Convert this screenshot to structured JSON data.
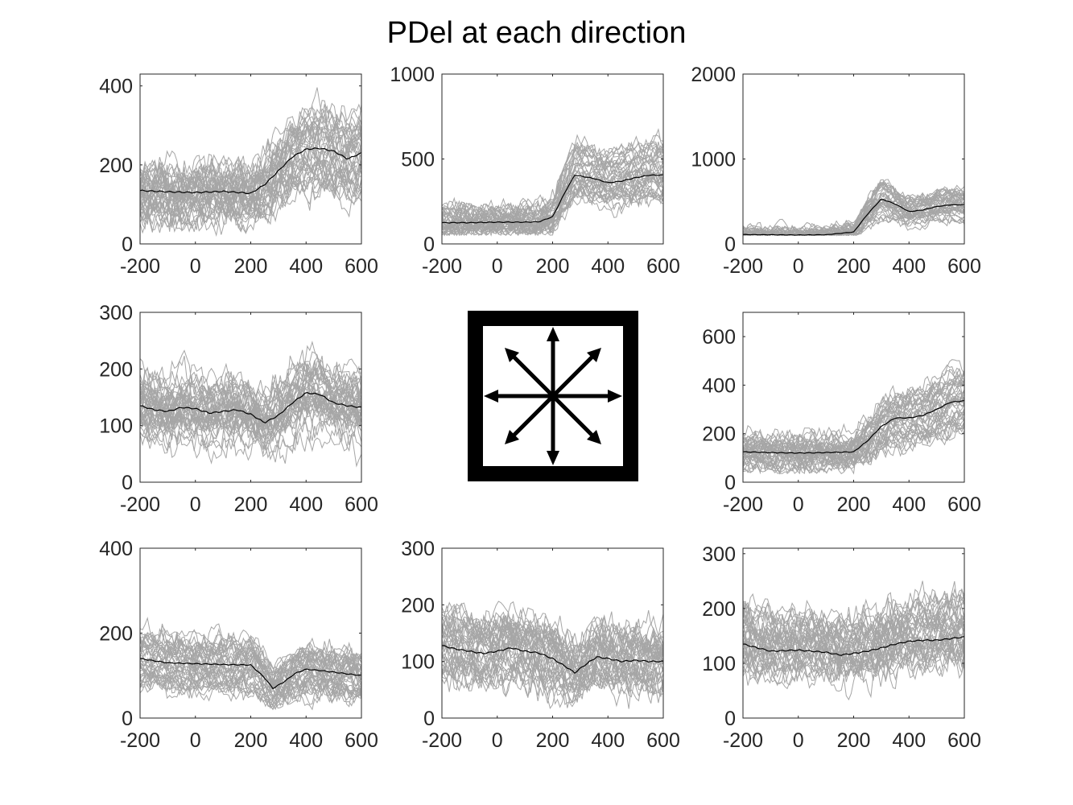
{
  "title": "PDel at each direction",
  "colors": {
    "trials": "#a6a6a6",
    "mean": "#000000",
    "axes": "#262626"
  },
  "chart_data": [
    {
      "type": "line",
      "panel": "top-left",
      "xlim": [
        -200,
        600
      ],
      "ylim": [
        0,
        430
      ],
      "xticks": [
        -200,
        0,
        200,
        400,
        600
      ],
      "yticks": [
        0,
        200,
        400
      ],
      "trial_spread": 55,
      "series": [
        {
          "x": [
            -200,
            -100,
            0,
            100,
            200,
            250,
            300,
            350,
            400,
            450,
            500,
            550,
            600
          ],
          "values": [
            135,
            132,
            130,
            133,
            128,
            150,
            185,
            220,
            240,
            242,
            235,
            215,
            230
          ]
        }
      ]
    },
    {
      "type": "line",
      "panel": "top-middle",
      "xlim": [
        -200,
        600
      ],
      "ylim": [
        0,
        1000
      ],
      "xticks": [
        -200,
        0,
        200,
        400,
        600
      ],
      "yticks": [
        0,
        500,
        1000
      ],
      "trial_spread": 75,
      "series": [
        {
          "x": [
            -200,
            -100,
            0,
            100,
            150,
            200,
            250,
            280,
            300,
            350,
            400,
            450,
            500,
            550,
            600
          ],
          "values": [
            125,
            125,
            128,
            128,
            130,
            160,
            320,
            405,
            400,
            385,
            360,
            370,
            390,
            405,
            405
          ]
        }
      ]
    },
    {
      "type": "line",
      "panel": "top-right",
      "xlim": [
        -200,
        600
      ],
      "ylim": [
        0,
        2000
      ],
      "xticks": [
        -200,
        0,
        200,
        400,
        600
      ],
      "yticks": [
        0,
        1000,
        2000
      ],
      "trial_spread": 90,
      "series": [
        {
          "x": [
            -200,
            -100,
            0,
            100,
            200,
            250,
            300,
            350,
            400,
            450,
            500,
            550,
            600
          ],
          "values": [
            110,
            108,
            105,
            108,
            140,
            350,
            530,
            470,
            380,
            400,
            440,
            460,
            460
          ]
        }
      ]
    },
    {
      "type": "line",
      "panel": "middle-left",
      "xlim": [
        -200,
        600
      ],
      "ylim": [
        0,
        300
      ],
      "xticks": [
        -200,
        0,
        200,
        400,
        600
      ],
      "yticks": [
        0,
        100,
        200,
        300
      ],
      "trial_spread": 38,
      "series": [
        {
          "x": [
            -200,
            -150,
            -100,
            -50,
            0,
            50,
            100,
            150,
            200,
            250,
            300,
            350,
            400,
            450,
            500,
            550,
            600
          ],
          "values": [
            135,
            128,
            125,
            132,
            130,
            122,
            125,
            128,
            120,
            105,
            118,
            140,
            158,
            155,
            140,
            135,
            132
          ]
        }
      ]
    },
    {
      "type": "line",
      "panel": "middle-right",
      "xlim": [
        -200,
        600
      ],
      "ylim": [
        0,
        700
      ],
      "xticks": [
        -200,
        0,
        200,
        400,
        600
      ],
      "yticks": [
        0,
        200,
        400,
        600
      ],
      "trial_spread": 55,
      "series": [
        {
          "x": [
            -200,
            -100,
            0,
            100,
            200,
            250,
            300,
            350,
            400,
            450,
            500,
            550,
            600
          ],
          "values": [
            125,
            122,
            120,
            122,
            125,
            170,
            230,
            265,
            265,
            275,
            300,
            330,
            335
          ]
        }
      ]
    },
    {
      "type": "line",
      "panel": "bottom-left",
      "xlim": [
        -200,
        600
      ],
      "ylim": [
        0,
        400
      ],
      "xticks": [
        -200,
        0,
        200,
        400,
        600
      ],
      "yticks": [
        0,
        200,
        400
      ],
      "trial_spread": 35,
      "series": [
        {
          "x": [
            -200,
            -100,
            0,
            100,
            200,
            250,
            280,
            320,
            360,
            400,
            450,
            500,
            550,
            600
          ],
          "values": [
            140,
            130,
            128,
            126,
            125,
            95,
            70,
            85,
            105,
            115,
            112,
            108,
            104,
            100
          ]
        }
      ]
    },
    {
      "type": "line",
      "panel": "bottom-middle",
      "xlim": [
        -200,
        600
      ],
      "ylim": [
        0,
        300
      ],
      "xticks": [
        -200,
        0,
        200,
        400,
        600
      ],
      "yticks": [
        0,
        100,
        200,
        300
      ],
      "trial_spread": 38,
      "series": [
        {
          "x": [
            -200,
            -150,
            -100,
            -50,
            0,
            50,
            100,
            150,
            200,
            250,
            280,
            320,
            360,
            400,
            450,
            500,
            550,
            600
          ],
          "values": [
            128,
            122,
            118,
            114,
            118,
            124,
            118,
            115,
            105,
            90,
            80,
            95,
            108,
            105,
            100,
            102,
            100,
            100
          ]
        }
      ]
    },
    {
      "type": "line",
      "panel": "bottom-right",
      "xlim": [
        -200,
        600
      ],
      "ylim": [
        0,
        310
      ],
      "xticks": [
        -200,
        0,
        200,
        400,
        600
      ],
      "yticks": [
        0,
        100,
        200,
        300
      ],
      "trial_spread": 38,
      "series": [
        {
          "x": [
            -200,
            -100,
            0,
            100,
            150,
            200,
            250,
            300,
            350,
            400,
            450,
            500,
            550,
            600
          ],
          "values": [
            135,
            122,
            124,
            120,
            115,
            118,
            122,
            128,
            135,
            140,
            142,
            142,
            145,
            148
          ]
        }
      ]
    }
  ]
}
